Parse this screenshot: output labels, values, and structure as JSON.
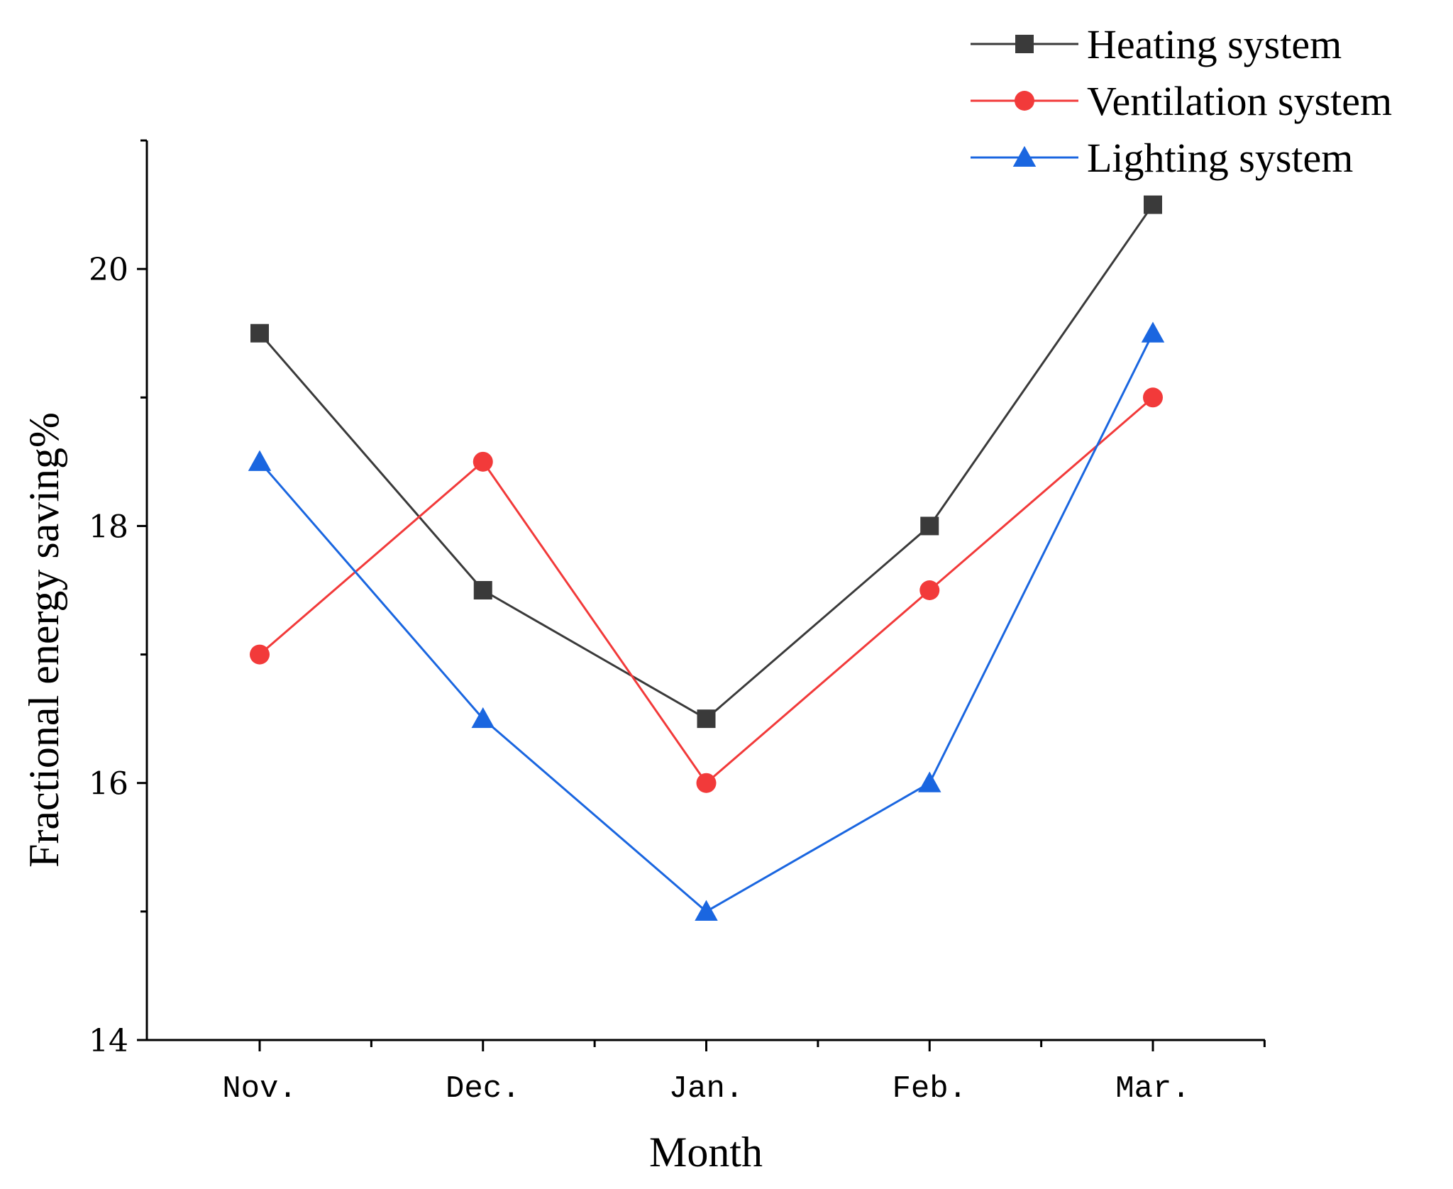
{
  "chart_data": {
    "type": "line",
    "title": "",
    "xlabel": "Month",
    "ylabel": "Fractional energy saving%",
    "categories": [
      "Nov.",
      "Dec.",
      "Jan.",
      "Feb.",
      "Mar."
    ],
    "ylim": [
      14,
      21
    ],
    "yticks": [
      14,
      16,
      18,
      20
    ],
    "grid": false,
    "legend_position": "top-right",
    "series": [
      {
        "name": "Heating system",
        "color": "#3a3a3a",
        "marker": "square",
        "values": [
          19.5,
          17.5,
          16.5,
          18.0,
          20.5
        ]
      },
      {
        "name": "Ventilation system",
        "color": "#f23a3a",
        "marker": "circle",
        "values": [
          17.0,
          18.5,
          16.0,
          17.5,
          19.0
        ]
      },
      {
        "name": "Lighting system",
        "color": "#1a66e0",
        "marker": "triangle",
        "values": [
          18.5,
          16.5,
          15.0,
          16.0,
          19.5
        ]
      }
    ]
  }
}
